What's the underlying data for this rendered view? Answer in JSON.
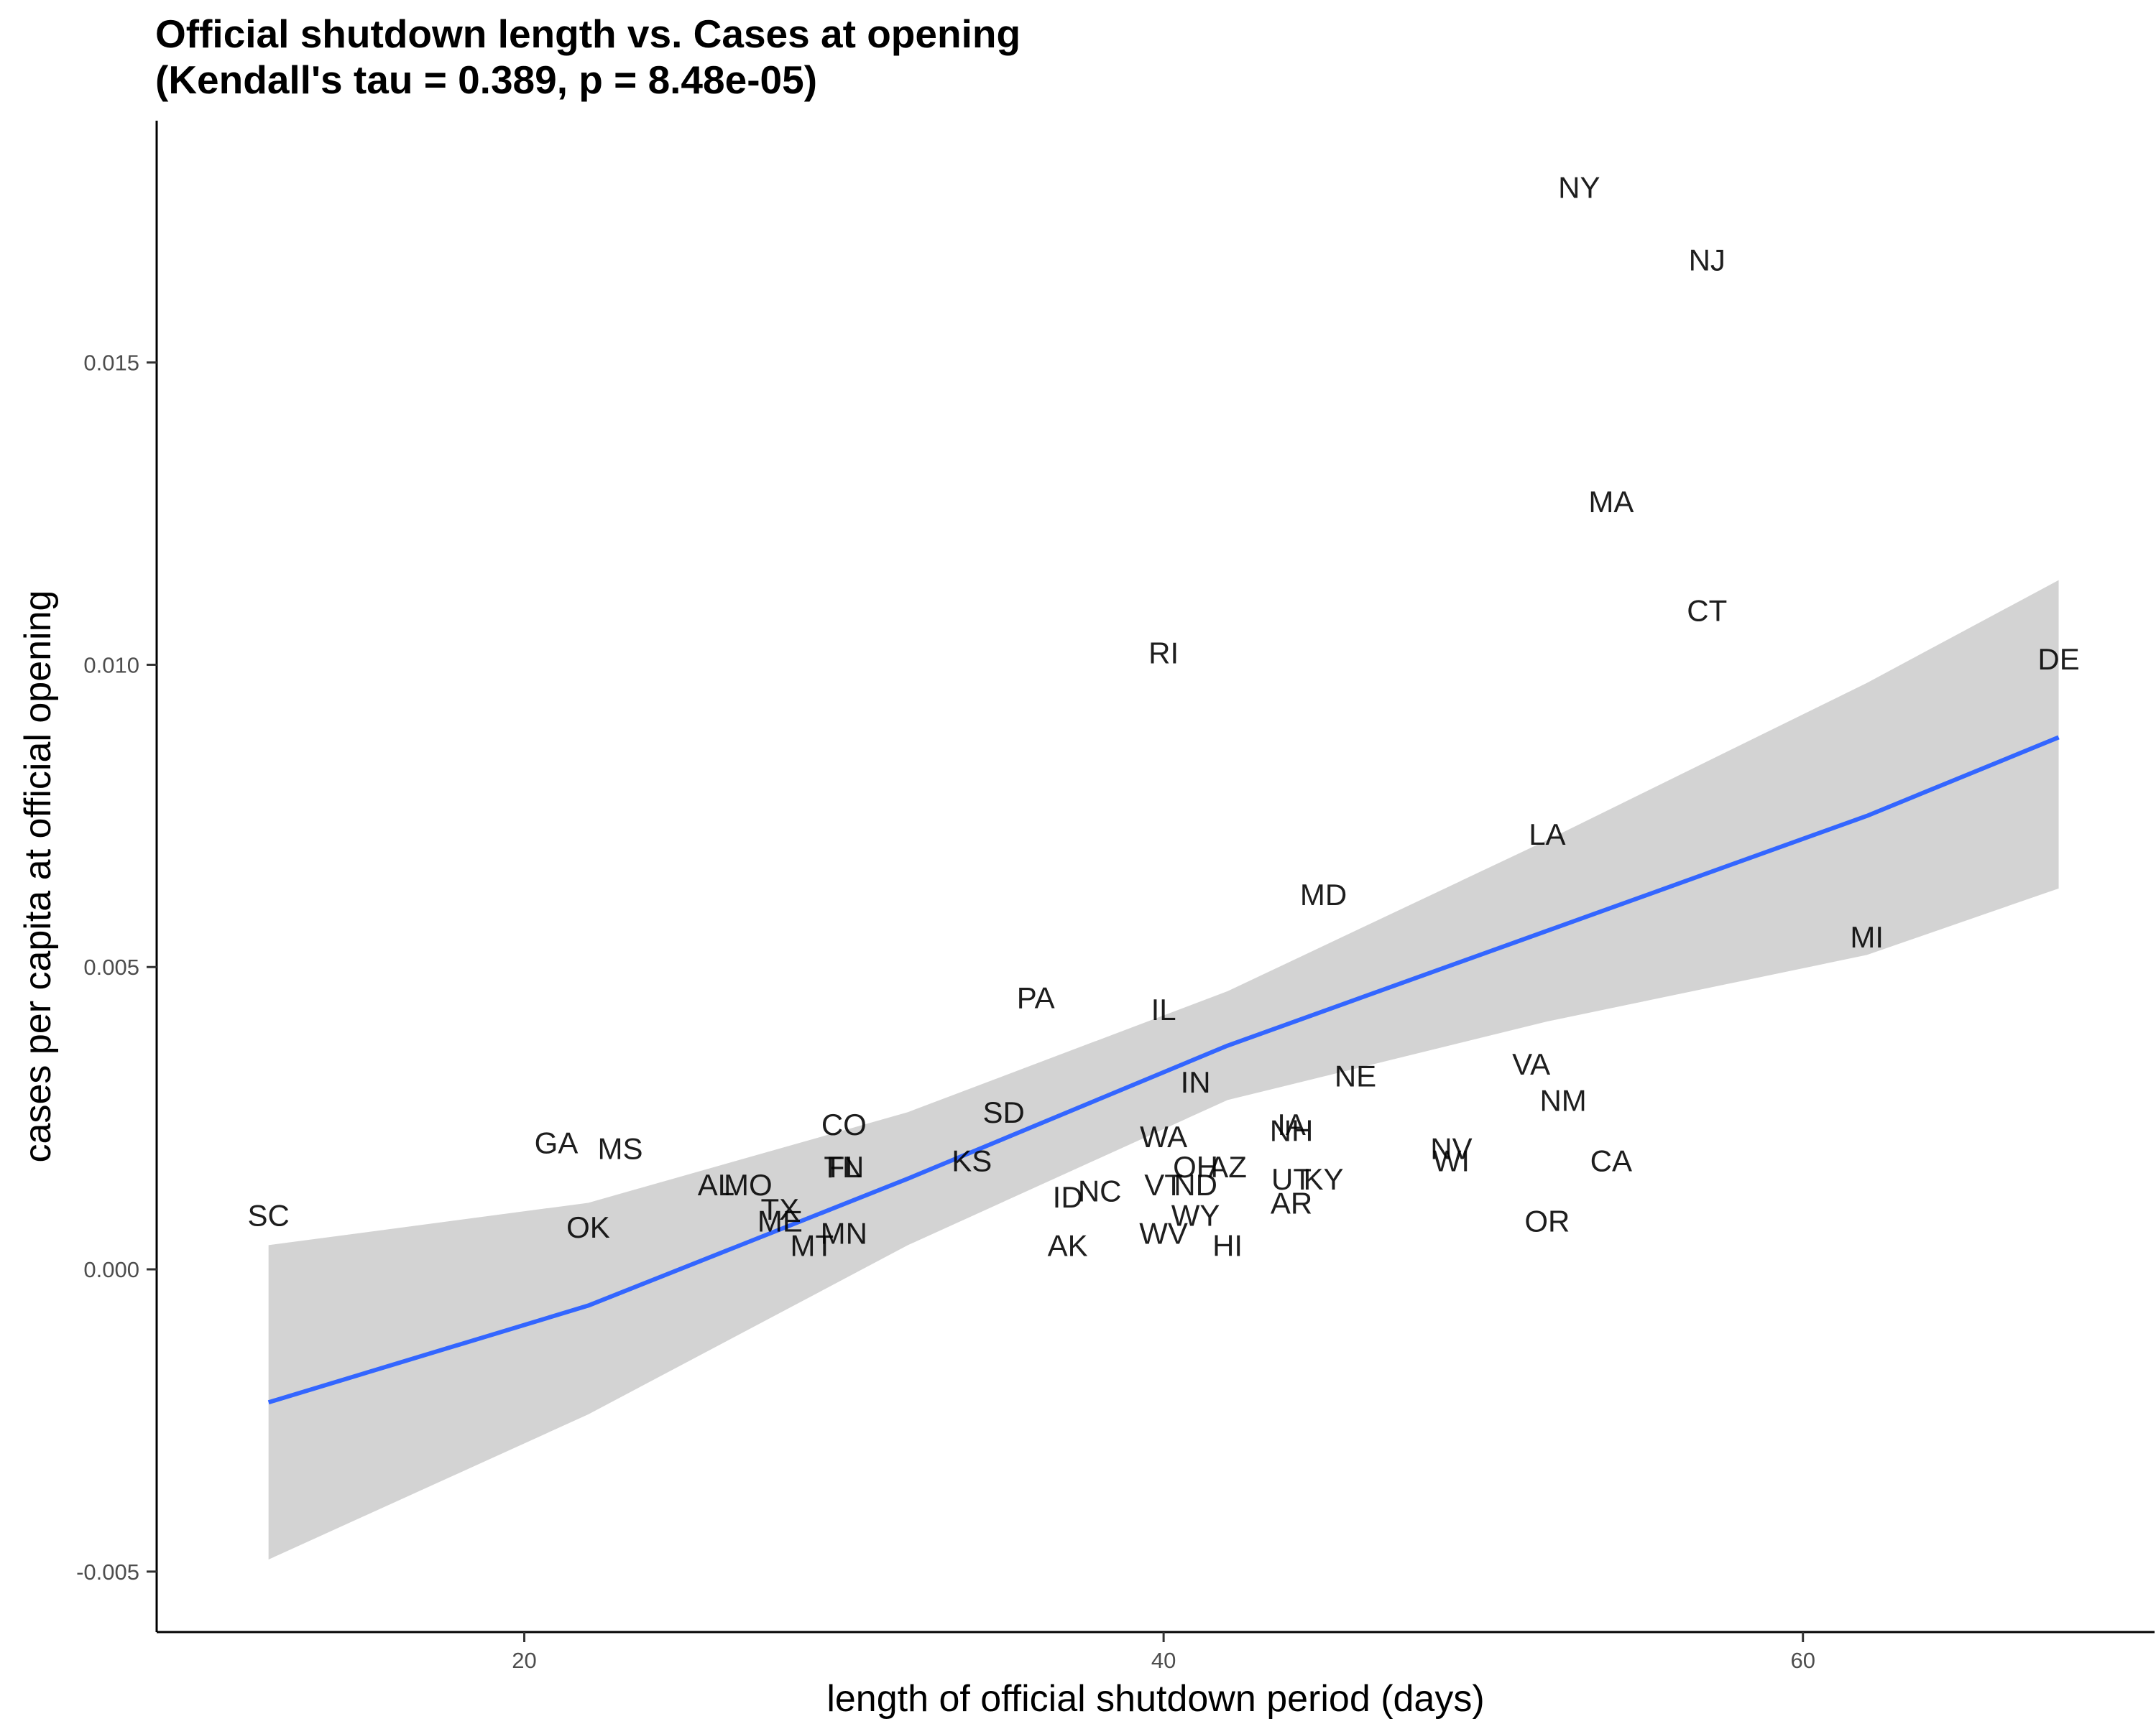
{
  "chart_data": {
    "type": "scatter",
    "title": "Official shutdown length vs. Cases at opening",
    "subtitle": "(Kendall's tau = 0.389, p = 8.48e-05)",
    "xlabel": "length of official shutdown period (days)",
    "ylabel": "cases per capita at official opening",
    "xlim": [
      8.5,
      71.0
    ],
    "ylim": [
      -0.006,
      0.019
    ],
    "x_ticks": [
      20,
      40,
      60
    ],
    "x_tick_labels": [
      "20",
      "40",
      "60"
    ],
    "y_ticks": [
      -0.005,
      0.0,
      0.005,
      0.01,
      0.015
    ],
    "y_tick_labels": [
      "-0.005",
      "0.000",
      "0.005",
      "0.010",
      "0.015"
    ],
    "grid": false,
    "colors": {
      "fit_line": "#3366ff",
      "ribbon": "#d3d3d3",
      "axis": "#000000",
      "text": "#000000"
    },
    "fit": {
      "x": [
        12,
        22,
        32,
        42,
        52,
        62,
        68
      ],
      "y": [
        -0.0022,
        -0.0006,
        0.0015,
        0.0037,
        0.0056,
        0.0075,
        0.0088
      ],
      "lower": [
        -0.0048,
        -0.0024,
        0.0004,
        0.0028,
        0.0041,
        0.0052,
        0.0063
      ],
      "upper": [
        0.0004,
        0.0011,
        0.0026,
        0.0046,
        0.0071,
        0.0097,
        0.0114
      ]
    },
    "points": [
      {
        "label": "NY",
        "x": 53.0,
        "y": 0.0179
      },
      {
        "label": "NJ",
        "x": 57.0,
        "y": 0.0167
      },
      {
        "label": "MA",
        "x": 54.0,
        "y": 0.0127
      },
      {
        "label": "CT",
        "x": 57.0,
        "y": 0.0109
      },
      {
        "label": "RI",
        "x": 40.0,
        "y": 0.0102
      },
      {
        "label": "DE",
        "x": 68.0,
        "y": 0.0101
      },
      {
        "label": "LA",
        "x": 52.0,
        "y": 0.0072
      },
      {
        "label": "MD",
        "x": 45.0,
        "y": 0.0062
      },
      {
        "label": "MI",
        "x": 62.0,
        "y": 0.0055
      },
      {
        "label": "PA",
        "x": 36.0,
        "y": 0.0045
      },
      {
        "label": "IL",
        "x": 40.0,
        "y": 0.0043
      },
      {
        "label": "VA",
        "x": 51.5,
        "y": 0.0034
      },
      {
        "label": "NE",
        "x": 46.0,
        "y": 0.0032
      },
      {
        "label": "IN",
        "x": 41.0,
        "y": 0.0031
      },
      {
        "label": "NM",
        "x": 52.5,
        "y": 0.0028
      },
      {
        "label": "SD",
        "x": 35.0,
        "y": 0.0026
      },
      {
        "label": "CO",
        "x": 30.0,
        "y": 0.0024
      },
      {
        "label": "IA",
        "x": 44.0,
        "y": 0.0024
      },
      {
        "label": "NH",
        "x": 44.0,
        "y": 0.0023
      },
      {
        "label": "WA",
        "x": 40.0,
        "y": 0.0022
      },
      {
        "label": "GA",
        "x": 21.0,
        "y": 0.0021
      },
      {
        "label": "MS",
        "x": 23.0,
        "y": 0.002
      },
      {
        "label": "NV",
        "x": 49.0,
        "y": 0.002
      },
      {
        "label": "WI",
        "x": 49.0,
        "y": 0.0018
      },
      {
        "label": "CA",
        "x": 54.0,
        "y": 0.0018
      },
      {
        "label": "KS",
        "x": 34.0,
        "y": 0.0018
      },
      {
        "label": "TN",
        "x": 30.0,
        "y": 0.0017
      },
      {
        "label": "FL",
        "x": 30.0,
        "y": 0.0017
      },
      {
        "label": "OH",
        "x": 41.0,
        "y": 0.0017
      },
      {
        "label": "AZ",
        "x": 42.0,
        "y": 0.0017
      },
      {
        "label": "UT",
        "x": 44.0,
        "y": 0.0015
      },
      {
        "label": "KY",
        "x": 45.0,
        "y": 0.0015
      },
      {
        "label": "ND",
        "x": 41.0,
        "y": 0.0014
      },
      {
        "label": "VT",
        "x": 40.0,
        "y": 0.0014
      },
      {
        "label": "AL",
        "x": 26.0,
        "y": 0.0014
      },
      {
        "label": "MO",
        "x": 27.0,
        "y": 0.0014
      },
      {
        "label": "NC",
        "x": 38.0,
        "y": 0.0013
      },
      {
        "label": "ID",
        "x": 37.0,
        "y": 0.0012
      },
      {
        "label": "AR",
        "x": 44.0,
        "y": 0.0011
      },
      {
        "label": "TX",
        "x": 28.0,
        "y": 0.001
      },
      {
        "label": "WY",
        "x": 41.0,
        "y": 0.0009
      },
      {
        "label": "SC",
        "x": 12.0,
        "y": 0.0009
      },
      {
        "label": "OR",
        "x": 52.0,
        "y": 0.0008
      },
      {
        "label": "ME",
        "x": 28.0,
        "y": 0.0008
      },
      {
        "label": "OK",
        "x": 22.0,
        "y": 0.0007
      },
      {
        "label": "MN",
        "x": 30.0,
        "y": 0.0006
      },
      {
        "label": "WV",
        "x": 40.0,
        "y": 0.0006
      },
      {
        "label": "AK",
        "x": 37.0,
        "y": 0.0004
      },
      {
        "label": "HI",
        "x": 42.0,
        "y": 0.0004
      },
      {
        "label": "MT",
        "x": 29.0,
        "y": 0.0004
      }
    ]
  }
}
